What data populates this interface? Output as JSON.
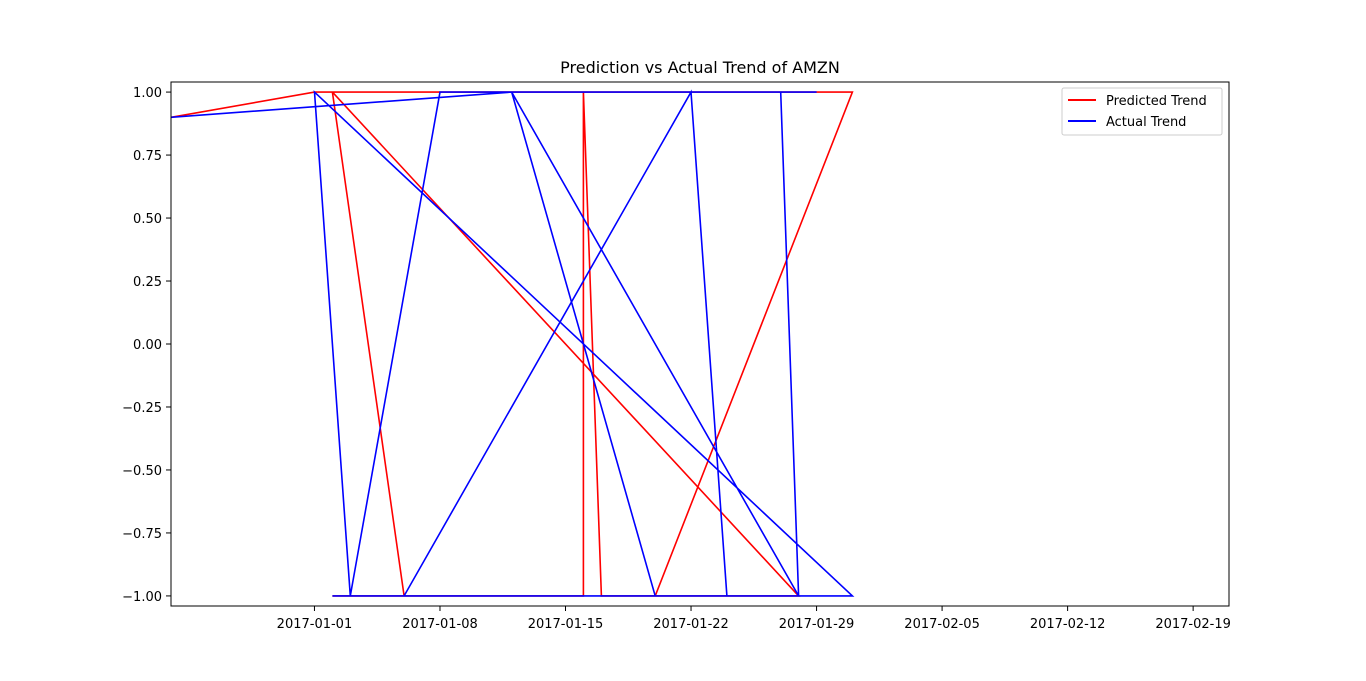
{
  "chart_data": {
    "type": "line",
    "title": "Prediction vs Actual Trend of AMZN",
    "xlabel": "",
    "ylabel": "",
    "x_range": [
      "2016-12-24",
      "2017-02-21"
    ],
    "ylim": [
      -1.04,
      1.04
    ],
    "x_ticks": [
      "2017-01-01",
      "2017-01-08",
      "2017-01-15",
      "2017-01-22",
      "2017-01-29",
      "2017-02-05",
      "2017-02-12",
      "2017-02-19"
    ],
    "y_ticks": [
      1.0,
      0.75,
      0.5,
      0.25,
      0.0,
      -0.25,
      -0.5,
      -0.75,
      -1.0
    ],
    "y_tick_labels": [
      "1.00",
      "0.75",
      "0.50",
      "0.25",
      "0.00",
      "−0.25",
      "−0.50",
      "−0.75",
      "−1.00"
    ],
    "grid": false,
    "legend_position": "upper right",
    "series": [
      {
        "name": "Predicted Trend",
        "color": "#ff0000",
        "points": [
          {
            "x": "2016-12-24",
            "y": 0.9
          },
          {
            "x": "2017-01-01",
            "y": 1
          },
          {
            "x": "2017-01-02",
            "y": 1
          },
          {
            "x": "2017-01-06",
            "y": -1
          },
          {
            "x": "2017-01-02",
            "y": -1
          },
          {
            "x": "2017-01-16",
            "y": -1
          },
          {
            "x": "2017-01-16",
            "y": 1
          },
          {
            "x": "2017-01-02",
            "y": 1
          },
          {
            "x": "2017-01-28",
            "y": -1
          },
          {
            "x": "2017-01-17",
            "y": -1
          },
          {
            "x": "2017-01-16",
            "y": 1
          },
          {
            "x": "2017-01-31",
            "y": 1
          },
          {
            "x": "2017-01-20",
            "y": -1
          },
          {
            "x": "2017-01-28",
            "y": -1
          }
        ]
      },
      {
        "name": "Actual Trend",
        "color": "#0000ff",
        "points": [
          {
            "x": "2016-12-24",
            "y": 0.9
          },
          {
            "x": "2017-01-12",
            "y": 1
          },
          {
            "x": "2017-01-20",
            "y": -1
          },
          {
            "x": "2017-01-02",
            "y": -1
          },
          {
            "x": "2017-01-24",
            "y": -1
          },
          {
            "x": "2017-01-22",
            "y": 1
          },
          {
            "x": "2017-01-06",
            "y": -1
          },
          {
            "x": "2017-01-31",
            "y": -1
          },
          {
            "x": "2017-01-01",
            "y": 1
          },
          {
            "x": "2017-01-03",
            "y": -1
          },
          {
            "x": "2017-01-08",
            "y": 1
          },
          {
            "x": "2017-01-29",
            "y": 1
          },
          {
            "x": "2017-01-27",
            "y": 1
          },
          {
            "x": "2017-01-28",
            "y": -1
          },
          {
            "x": "2017-01-12",
            "y": 1
          }
        ]
      }
    ]
  }
}
